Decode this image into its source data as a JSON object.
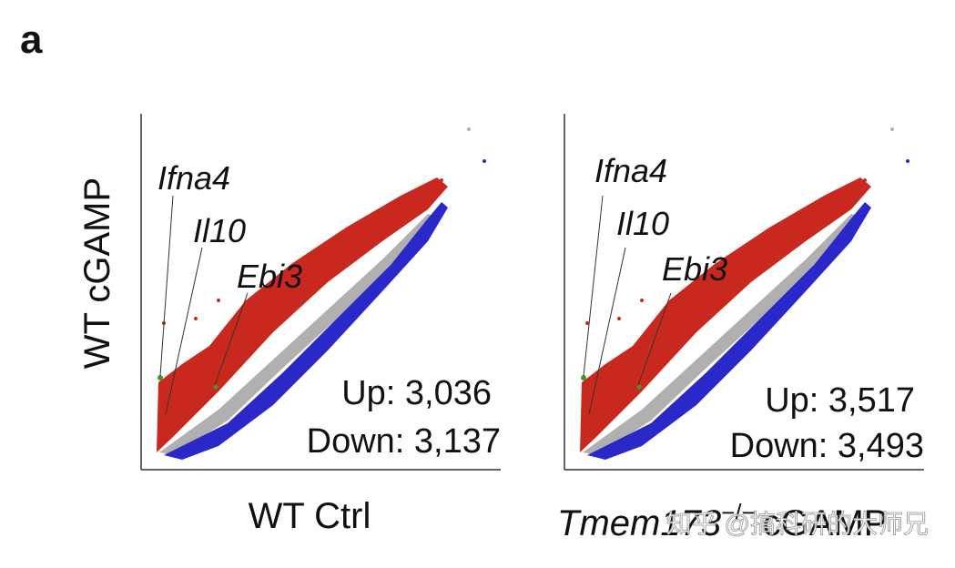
{
  "panel_label": "a",
  "panels": [
    {
      "y_label": "WT cGAMP",
      "x_label": "WT Ctrl",
      "genes": [
        "Ifna4",
        "Il10",
        "Ebi3"
      ],
      "up": "Up: 3,036",
      "down": "Down: 3,137"
    },
    {
      "x_label_italic": "Tmem173",
      "x_label_sup": "−/−",
      "x_label_rest": "cGAMP",
      "genes": [
        "Ifna4",
        "Il10",
        "Ebi3"
      ],
      "up": "Up: 3,517",
      "down": "Down: 3,493"
    }
  ],
  "watermark": "知乎 @搞科研的大师兄"
}
